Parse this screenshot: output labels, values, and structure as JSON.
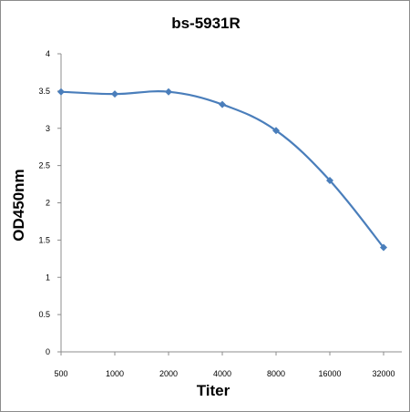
{
  "chart_data": {
    "type": "line",
    "title": "bs-5931R",
    "xlabel": "Titer",
    "ylabel": "OD450nm",
    "categories": [
      "500",
      "1000",
      "2000",
      "4000",
      "8000",
      "16000",
      "32000"
    ],
    "series": [
      {
        "values": [
          3.49,
          3.46,
          3.49,
          3.32,
          2.97,
          2.3,
          1.4
        ]
      }
    ],
    "ylim": [
      0,
      4
    ],
    "yticks": [
      "0",
      "0.5",
      "1",
      "1.5",
      "2",
      "2.5",
      "3",
      "3.5",
      "4"
    ],
    "grid": false,
    "legend": "none",
    "colors": {
      "series": "#4a7ebb",
      "axis": "#8c8c8c"
    },
    "smoothed": true,
    "marker": "diamond"
  }
}
